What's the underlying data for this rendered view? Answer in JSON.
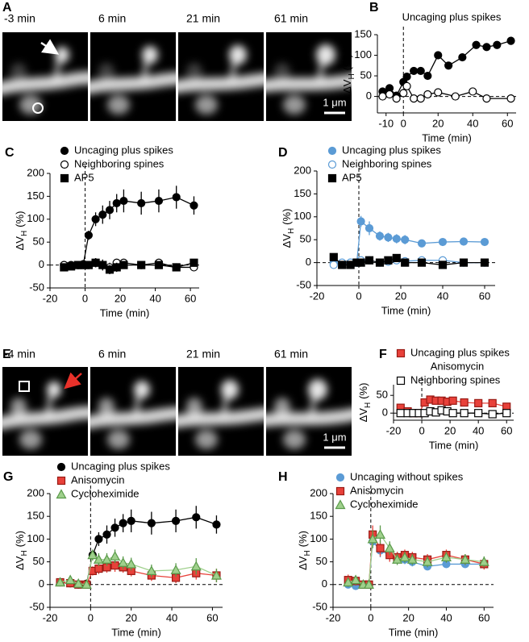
{
  "image_panels": [
    {
      "panel": "A",
      "time_labels": [
        "-3 min",
        "6 min",
        "21 min",
        "61 min"
      ],
      "scale_bar": "1 μm"
    },
    {
      "panel": "E",
      "time_labels": [
        "-4 min",
        "6 min",
        "21 min",
        "61 min"
      ],
      "scale_bar": "1 μm"
    }
  ],
  "chart_data": [
    {
      "type": "line",
      "panel": "B",
      "title": "Uncaging plus spikes",
      "x_label": "Time (min)",
      "y_label": [
        "ΔV",
        "H",
        "(%)"
      ],
      "xlim": [
        -15,
        65
      ],
      "xticks": [
        -10,
        0,
        20,
        40,
        60
      ],
      "ylim": [
        -40,
        150
      ],
      "yticks": [
        0,
        50,
        100,
        150
      ],
      "zero_lines": true,
      "series": [
        {
          "color": "#000000",
          "marker": "circle",
          "x": [
            -12,
            -8,
            -4,
            0,
            2,
            6,
            10,
            14,
            20,
            26,
            34,
            42,
            48,
            54,
            62
          ],
          "values": [
            12,
            20,
            2,
            35,
            48,
            62,
            62,
            50,
            100,
            75,
            95,
            125,
            120,
            125,
            135
          ]
        },
        {
          "color": "#000000",
          "marker": "circle-open",
          "x": [
            -12,
            -8,
            -4,
            0,
            2,
            6,
            10,
            14,
            20,
            30,
            40,
            48,
            62
          ],
          "values": [
            0,
            5,
            -5,
            8,
            25,
            -5,
            -5,
            5,
            10,
            0,
            12,
            -5,
            -5
          ]
        }
      ]
    },
    {
      "type": "line",
      "panel": "C",
      "x_label": "Time (min)",
      "y_label": [
        "ΔV",
        "H",
        "(%)"
      ],
      "xlim": [
        -20,
        65
      ],
      "xticks": [
        -20,
        0,
        20,
        40,
        60
      ],
      "ylim": [
        -50,
        200
      ],
      "yticks": [
        -50,
        0,
        50,
        100,
        150,
        200
      ],
      "zero_lines": true,
      "series": [
        {
          "name": "Uncaging plus spikes",
          "color": "#000000",
          "marker": "circle",
          "x": [
            -12,
            -8,
            -4,
            -1,
            2,
            6,
            10,
            14,
            18,
            22,
            32,
            42,
            52,
            62
          ],
          "values": [
            0,
            0,
            0,
            2,
            65,
            100,
            110,
            120,
            135,
            140,
            135,
            140,
            148,
            130
          ],
          "errors": [
            5,
            5,
            5,
            5,
            10,
            15,
            20,
            20,
            20,
            25,
            25,
            25,
            25,
            20
          ]
        },
        {
          "name": "Neighboring spines",
          "color": "#000000",
          "marker": "circle-open",
          "x": [
            -12,
            -8,
            -4,
            -1,
            2,
            6,
            10,
            14,
            18,
            22,
            32,
            42,
            52,
            62
          ],
          "values": [
            0,
            -2,
            0,
            0,
            0,
            5,
            0,
            -5,
            5,
            5,
            0,
            5,
            -5,
            -5
          ],
          "errors": [
            6,
            6,
            6,
            6,
            8,
            10,
            10,
            10,
            8,
            8,
            8,
            8,
            8,
            8
          ]
        },
        {
          "name": "AP5",
          "color": "#000000",
          "marker": "square",
          "x": [
            -12,
            -8,
            -4,
            -1,
            2,
            6,
            10,
            14,
            18,
            22,
            32,
            42,
            52,
            62
          ],
          "values": [
            -5,
            -3,
            0,
            0,
            0,
            5,
            0,
            -10,
            -5,
            0,
            0,
            0,
            -5,
            5
          ],
          "errors": [
            6,
            6,
            6,
            6,
            8,
            10,
            12,
            10,
            10,
            8,
            8,
            8,
            8,
            8
          ]
        }
      ]
    },
    {
      "type": "line",
      "panel": "D",
      "x_label": "Time (min)",
      "y_label": [
        "ΔV",
        "H",
        "(%)"
      ],
      "xlim": [
        -20,
        65
      ],
      "xticks": [
        -20,
        0,
        20,
        40,
        60
      ],
      "ylim": [
        -50,
        200
      ],
      "yticks": [
        -50,
        0,
        50,
        100,
        150,
        200
      ],
      "zero_lines": true,
      "series": [
        {
          "name": "Uncaging plus spikes",
          "color": "#5b9bd5",
          "marker": "circle",
          "x": [
            -12,
            -8,
            -4,
            -1,
            1,
            5,
            10,
            14,
            18,
            22,
            30,
            40,
            50,
            60
          ],
          "values": [
            0,
            -2,
            0,
            0,
            90,
            75,
            58,
            55,
            52,
            50,
            42,
            45,
            46,
            45
          ],
          "errors": [
            5,
            5,
            5,
            5,
            12,
            15,
            10,
            10,
            10,
            10,
            8,
            8,
            8,
            8
          ]
        },
        {
          "name": "Neighboring spines",
          "color": "#5b9bd5",
          "marker": "circle-open",
          "x": [
            -12,
            -8,
            -4,
            -1,
            1,
            5,
            10,
            14,
            18,
            22,
            30,
            40,
            50,
            60
          ],
          "values": [
            -5,
            0,
            0,
            0,
            5,
            5,
            0,
            2,
            5,
            3,
            5,
            5,
            0,
            0
          ],
          "errors": [
            5,
            5,
            5,
            5,
            6,
            6,
            6,
            6,
            6,
            6,
            6,
            6,
            6,
            6
          ]
        },
        {
          "name": "AP5",
          "color": "#000000",
          "marker": "square",
          "x": [
            -12,
            -8,
            -4,
            -1,
            1,
            5,
            10,
            14,
            18,
            22,
            30,
            40,
            50,
            60
          ],
          "values": [
            12,
            -5,
            -5,
            0,
            0,
            5,
            0,
            5,
            10,
            0,
            0,
            -5,
            0,
            0
          ],
          "errors": [
            5,
            5,
            5,
            5,
            6,
            6,
            6,
            6,
            8,
            6,
            6,
            6,
            6,
            6
          ]
        }
      ]
    },
    {
      "type": "line",
      "panel": "F",
      "legend_note": "Anisomycin",
      "x_label": "Time (min)",
      "y_label": [
        "ΔV",
        "H",
        "(%)"
      ],
      "xlim": [
        -20,
        65
      ],
      "xticks": [
        -20,
        0,
        20,
        40,
        60
      ],
      "ylim": [
        -20,
        80
      ],
      "yticks": [
        0,
        50
      ],
      "zero_lines": true,
      "series": [
        {
          "name": "Uncaging plus spikes",
          "color": "#e8413a",
          "marker": "square",
          "x": [
            -15,
            -10,
            -6,
            -2,
            2,
            6,
            10,
            14,
            18,
            22,
            30,
            40,
            50,
            60
          ],
          "values": [
            15,
            5,
            0,
            0,
            30,
            38,
            35,
            35,
            32,
            35,
            30,
            28,
            28,
            18
          ]
        },
        {
          "name": "Neighboring spines",
          "color": "#000000",
          "marker": "square-open",
          "x": [
            -15,
            -10,
            -6,
            -2,
            2,
            6,
            10,
            14,
            18,
            22,
            30,
            40,
            50,
            60
          ],
          "values": [
            0,
            0,
            0,
            0,
            0,
            5,
            2,
            8,
            5,
            0,
            0,
            0,
            -3,
            0
          ]
        }
      ]
    },
    {
      "type": "line",
      "panel": "G",
      "x_label": "Time (min)",
      "y_label": [
        "ΔV",
        "H",
        "(%)"
      ],
      "xlim": [
        -20,
        65
      ],
      "xticks": [
        -20,
        0,
        20,
        40,
        60
      ],
      "ylim": [
        -50,
        200
      ],
      "yticks": [
        -50,
        0,
        50,
        100,
        150,
        200
      ],
      "zero_lines": true,
      "series": [
        {
          "name": "Uncaging plus spikes",
          "color": "#000000",
          "marker": "circle",
          "x": [
            -15,
            -10,
            -6,
            -2,
            1,
            4,
            8,
            12,
            16,
            20,
            30,
            42,
            52,
            62
          ],
          "values": [
            5,
            3,
            0,
            2,
            65,
            100,
            110,
            125,
            135,
            140,
            135,
            140,
            148,
            132
          ],
          "errors": [
            5,
            5,
            5,
            5,
            10,
            15,
            20,
            20,
            20,
            25,
            25,
            25,
            25,
            20
          ]
        },
        {
          "name": "Anisomycin",
          "color": "#e8413a",
          "marker": "square",
          "x": [
            -15,
            -10,
            -6,
            -2,
            1,
            4,
            8,
            12,
            16,
            20,
            30,
            42,
            52,
            62
          ],
          "values": [
            5,
            3,
            0,
            0,
            30,
            35,
            38,
            42,
            38,
            30,
            20,
            15,
            25,
            20
          ],
          "errors": [
            6,
            6,
            6,
            6,
            10,
            12,
            12,
            14,
            12,
            12,
            12,
            12,
            14,
            15
          ]
        },
        {
          "name": "Cycloheximide",
          "color": "#9fd08c",
          "marker": "triangle",
          "x": [
            -15,
            -10,
            -6,
            -2,
            1,
            4,
            8,
            12,
            16,
            20,
            30,
            42,
            52,
            62
          ],
          "values": [
            5,
            10,
            2,
            0,
            65,
            55,
            55,
            62,
            48,
            45,
            30,
            32,
            40,
            20
          ],
          "errors": [
            6,
            8,
            6,
            6,
            12,
            14,
            14,
            15,
            14,
            14,
            14,
            15,
            18,
            15
          ]
        }
      ]
    },
    {
      "type": "line",
      "panel": "H",
      "x_label": "Time (min)",
      "y_label": [
        "ΔV",
        "H",
        "(%)"
      ],
      "xlim": [
        -20,
        65
      ],
      "xticks": [
        -20,
        0,
        20,
        40,
        60
      ],
      "ylim": [
        -50,
        200
      ],
      "yticks": [
        -50,
        0,
        50,
        100,
        150,
        200
      ],
      "zero_lines": true,
      "series": [
        {
          "name": "Uncaging without spikes",
          "color": "#5b9bd5",
          "marker": "circle",
          "x": [
            -12,
            -8,
            -4,
            -1,
            1,
            5,
            10,
            14,
            18,
            22,
            30,
            40,
            50,
            60
          ],
          "values": [
            0,
            -3,
            0,
            0,
            95,
            75,
            65,
            60,
            55,
            50,
            40,
            45,
            45,
            45
          ],
          "errors": [
            8,
            8,
            5,
            5,
            15,
            15,
            12,
            12,
            10,
            10,
            8,
            8,
            8,
            8
          ]
        },
        {
          "name": "Anisomycin",
          "color": "#e8413a",
          "marker": "square",
          "x": [
            -12,
            -8,
            -4,
            -1,
            1,
            5,
            10,
            14,
            18,
            22,
            30,
            40,
            50,
            60
          ],
          "values": [
            10,
            8,
            0,
            0,
            110,
            80,
            65,
            60,
            65,
            60,
            55,
            65,
            55,
            45
          ],
          "errors": [
            12,
            10,
            6,
            6,
            20,
            18,
            15,
            12,
            12,
            12,
            12,
            12,
            12,
            12
          ]
        },
        {
          "name": "Cycloheximide",
          "color": "#9fd08c",
          "marker": "triangle",
          "x": [
            -12,
            -8,
            -4,
            -1,
            1,
            5,
            10,
            14,
            18,
            22,
            30,
            40,
            50,
            60
          ],
          "values": [
            5,
            10,
            0,
            0,
            100,
            110,
            80,
            55,
            60,
            55,
            50,
            60,
            55,
            50
          ],
          "errors": [
            10,
            10,
            6,
            6,
            20,
            20,
            15,
            12,
            12,
            12,
            12,
            12,
            12,
            12
          ]
        }
      ]
    }
  ]
}
